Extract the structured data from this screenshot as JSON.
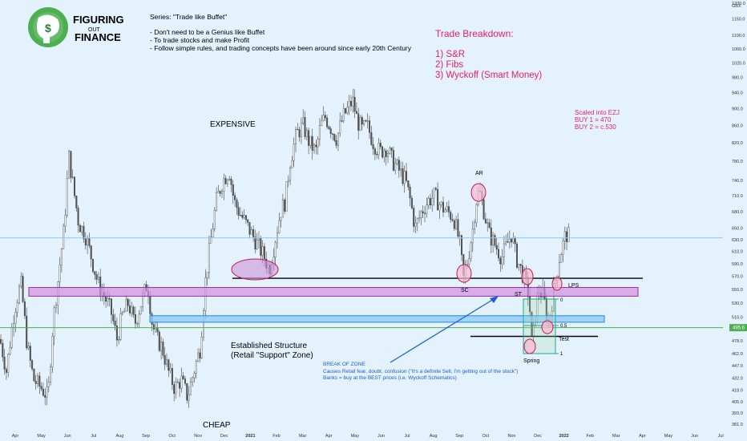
{
  "brand": {
    "line1": "FIGURING",
    "line2": "OUT",
    "line3": "FINANCE"
  },
  "notes": {
    "series": "Series: \"Trade like Buffet\"",
    "bullets": [
      "- Don't need to be a Genius like Buffet",
      "- To trade stocks and make Profit",
      "- Follow simple rules, and trading concepts have been around since early 20th Century"
    ]
  },
  "breakdown": {
    "title": "Trade Breakdown:",
    "items": [
      "1) S&R",
      "2) Fibs",
      "3) Wyckoff (Smart Money)"
    ]
  },
  "scaled": {
    "lines": [
      "Scaled into EZJ",
      "BUY 1 = 470",
      "BUY 2 = c.530"
    ]
  },
  "labels": {
    "expensive": "EXPENSIVE",
    "cheap": "CHEAP",
    "structure1": "Established Structure",
    "structure2": "(Retail \"Support\" Zone)",
    "ar": "AR",
    "sc": "SC",
    "st": "ST",
    "lps": "LPS",
    "test": "Test",
    "spring": "Spring",
    "fib0": "0",
    "fib05": "0.5",
    "fib1": "1",
    "break1": "BREAK OF ZONE",
    "break2": "Causes Retail fear, doubt, confusion (\"It's a definite Sell, I'm getting out of the stock\")",
    "break3": "Banks = buy at the BEST prices (i.e. Wyckoff Schematics)"
  },
  "chart_data": {
    "type": "candlestick",
    "currency": "GBX",
    "price_ticks": [
      381.0,
      393.0,
      405.0,
      418.0,
      432.0,
      447.0,
      462.0,
      478.0,
      494.0,
      510.0,
      530.0,
      550.0,
      570.0,
      590.0,
      610.0,
      630.0,
      650.0,
      680.0,
      710.0,
      740.0,
      780.0,
      820.0,
      860.0,
      900.0,
      940.0,
      980.0,
      1020.0,
      1060.0,
      1100.0,
      1150.0,
      1200.0
    ],
    "time_ticks": [
      "Apr",
      "May",
      "Jun",
      "Jul",
      "Aug",
      "Sep",
      "Oct",
      "Nov",
      "Dec",
      "2021",
      "Feb",
      "Mar",
      "Apr",
      "May",
      "Jun",
      "Jul",
      "Aug",
      "Sep",
      "Oct",
      "Nov",
      "Dec",
      "2022",
      "Feb",
      "Mar",
      "Apr",
      "May",
      "Jun",
      "Jul"
    ],
    "current_price": 633.0,
    "horizontal_line": 495.6,
    "levels": {
      "resistance_line": 567.0,
      "purple_zone": [
        540,
        553
      ],
      "blue_zone": [
        503,
        512
      ],
      "test_line": 484.0
    },
    "annotated_prices": {
      "AR": 710,
      "SC": 565,
      "Spring": 465,
      "Expensive": 830,
      "Cheap": 385
    }
  }
}
